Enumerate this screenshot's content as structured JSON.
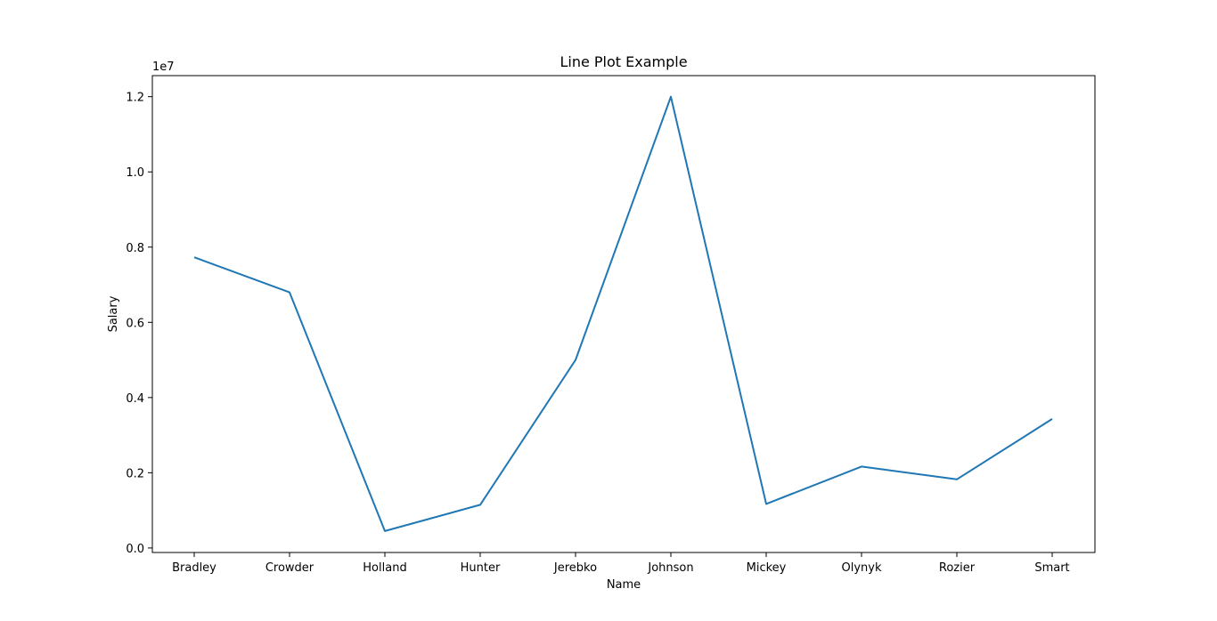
{
  "chart_data": {
    "type": "line",
    "title": "Line Plot Example",
    "xlabel": "Name",
    "ylabel": "Salary",
    "y_offset_label": "1e7",
    "categories": [
      "Bradley",
      "Crowder",
      "Holland",
      "Hunter",
      "Jerebko",
      "Johnson",
      "Mickey",
      "Olynyk",
      "Rozier",
      "Smart"
    ],
    "series": [
      {
        "values": [
          7730337,
          6796117,
          450000,
          1148640,
          5000000,
          12000000,
          1170960,
          2165160,
          1824360,
          3431040
        ],
        "color": "#1f77b4"
      }
    ],
    "ylim": [
      -120000,
      12560000
    ],
    "yticks": [
      0,
      2000000,
      4000000,
      6000000,
      8000000,
      10000000,
      12000000
    ],
    "ytick_labels": [
      "0.0",
      "0.2",
      "0.4",
      "0.6",
      "0.8",
      "1.0",
      "1.2"
    ],
    "grid": false,
    "legend": "none"
  }
}
